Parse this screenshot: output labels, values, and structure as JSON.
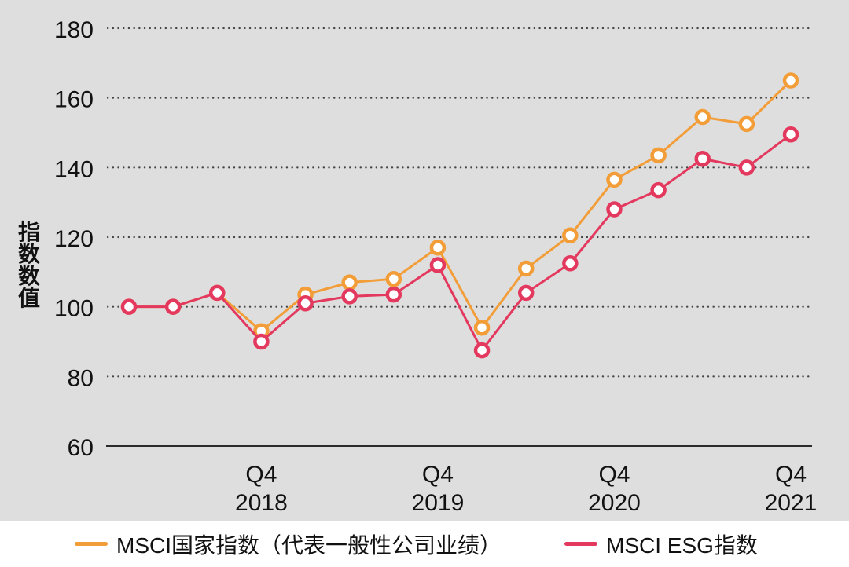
{
  "figure": {
    "plot_background": "#DEDEDE",
    "legend_background": "#FFFFFF"
  },
  "colors": {
    "grid_dot": "#454545",
    "axis_line": "#2B2B2B",
    "text": "#111111",
    "marker_fill": "#FFFFFF"
  },
  "chart_data": {
    "type": "line",
    "ylabel": "指数数值",
    "xlabel": "",
    "ylim": [
      60,
      185
    ],
    "y_ticks": [
      60,
      80,
      100,
      120,
      140,
      160,
      180
    ],
    "grid": "horizontal dotted, solid baseline at 60",
    "legend_position": "bottom",
    "x_point_count": 16,
    "x_note": "quarterly points, Q1 2018 through Q4 2021; ticks shown at each Q4",
    "x_ticks": [
      {
        "index": 3,
        "line1": "Q4",
        "line2": "2018"
      },
      {
        "index": 7,
        "line1": "Q4",
        "line2": "2019"
      },
      {
        "index": 11,
        "line1": "Q4",
        "line2": "2020"
      },
      {
        "index": 15,
        "line1": "Q4",
        "line2": "2021"
      }
    ],
    "series": [
      {
        "name": "MSCI国家指数（代表一般性公司业绩）",
        "color": "#F29D38",
        "values": [
          100,
          100,
          104,
          93,
          103.5,
          107,
          108,
          117,
          94,
          111,
          120.5,
          136.5,
          143.5,
          154.5,
          152.5,
          165
        ]
      },
      {
        "name": "MSCI ESG指数",
        "color": "#E4395E",
        "values": [
          100,
          100,
          104,
          90,
          101,
          103,
          103.5,
          112,
          87.5,
          104,
          112.5,
          128,
          133.5,
          142.5,
          140,
          149.5
        ]
      }
    ]
  }
}
